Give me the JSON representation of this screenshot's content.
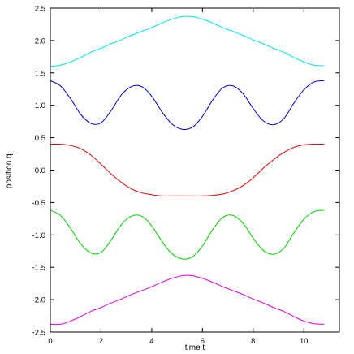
{
  "chart_data": {
    "type": "line",
    "title": "",
    "xlabel": "time t",
    "ylabel": "position q",
    "ylabel_subscript": "i",
    "xlim": [
      0,
      11.4
    ],
    "ylim": [
      -2.5,
      2.5
    ],
    "xticks": [
      0,
      2,
      4,
      6,
      8,
      10
    ],
    "xtick_labels": [
      "0",
      "2",
      "4",
      "6",
      "8",
      "10"
    ],
    "yticks": [
      -2.5,
      -2.0,
      -1.5,
      -1.0,
      -0.5,
      0.0,
      0.5,
      1.0,
      1.5,
      2.0,
      2.5
    ],
    "ytick_labels": [
      "-2.5",
      "-2.0",
      "-1.5",
      "-1.0",
      "-0.5",
      "0.0",
      "0.5",
      "1.0",
      "1.5",
      "2.0",
      "2.5"
    ],
    "grid": false,
    "legend": "none",
    "series": [
      {
        "color": "#00e5e5",
        "x": [
          0,
          0.4,
          0.8,
          1.2,
          1.6,
          2,
          2.4,
          2.8,
          3.2,
          3.6,
          4,
          4.4,
          4.8,
          5.2,
          5.6,
          6,
          6.4,
          6.8,
          7.2,
          7.6,
          8,
          8.4,
          8.8,
          9.2,
          9.6,
          10,
          10.4,
          10.8
        ],
        "y": [
          1.6,
          1.62,
          1.67,
          1.74,
          1.82,
          1.88,
          1.95,
          2.01,
          2.08,
          2.14,
          2.2,
          2.27,
          2.33,
          2.37,
          2.37,
          2.33,
          2.27,
          2.2,
          2.14,
          2.08,
          2.01,
          1.95,
          1.88,
          1.82,
          1.74,
          1.67,
          1.62,
          1.61
        ]
      },
      {
        "color": "#0000d0",
        "x": [
          0,
          0.4,
          0.8,
          1.2,
          1.6,
          2,
          2.4,
          2.8,
          3.2,
          3.6,
          4,
          4.4,
          4.8,
          5.2,
          5.6,
          6,
          6.4,
          6.8,
          7.2,
          7.6,
          8,
          8.4,
          8.8,
          9.2,
          9.6,
          10,
          10.4,
          10.8
        ],
        "y": [
          1.38,
          1.3,
          1.1,
          0.86,
          0.72,
          0.73,
          0.92,
          1.16,
          1.29,
          1.29,
          1.14,
          0.9,
          0.71,
          0.63,
          0.66,
          0.83,
          1.08,
          1.27,
          1.3,
          1.18,
          0.95,
          0.76,
          0.7,
          0.79,
          1.03,
          1.24,
          1.36,
          1.38
        ]
      },
      {
        "color": "#e00000",
        "x": [
          0,
          0.4,
          0.8,
          1.2,
          1.6,
          2,
          2.4,
          2.8,
          3.2,
          3.6,
          4,
          4.4,
          4.8,
          5.2,
          5.6,
          6,
          6.4,
          6.8,
          7.2,
          7.6,
          8,
          8.4,
          8.8,
          9.2,
          9.6,
          10,
          10.4,
          10.8
        ],
        "y": [
          0.4,
          0.4,
          0.38,
          0.33,
          0.23,
          0.09,
          -0.06,
          -0.19,
          -0.29,
          -0.35,
          -0.38,
          -0.4,
          -0.4,
          -0.4,
          -0.4,
          -0.4,
          -0.39,
          -0.37,
          -0.32,
          -0.24,
          -0.12,
          0.03,
          0.16,
          0.27,
          0.35,
          0.39,
          0.4,
          0.4
        ]
      },
      {
        "color": "#00d000",
        "x": [
          0,
          0.4,
          0.8,
          1.2,
          1.6,
          2,
          2.4,
          2.8,
          3.2,
          3.6,
          4,
          4.4,
          4.8,
          5.2,
          5.6,
          6,
          6.4,
          6.8,
          7.2,
          7.6,
          8,
          8.4,
          8.8,
          9.2,
          9.6,
          10,
          10.4,
          10.8
        ],
        "y": [
          -0.62,
          -0.7,
          -0.9,
          -1.14,
          -1.28,
          -1.27,
          -1.08,
          -0.84,
          -0.71,
          -0.71,
          -0.86,
          -1.1,
          -1.29,
          -1.37,
          -1.34,
          -1.17,
          -0.92,
          -0.73,
          -0.7,
          -0.82,
          -1.05,
          -1.24,
          -1.3,
          -1.21,
          -0.97,
          -0.76,
          -0.64,
          -0.62
        ]
      },
      {
        "color": "#e000e0",
        "x": [
          0,
          0.4,
          0.8,
          1.2,
          1.6,
          2,
          2.4,
          2.8,
          3.2,
          3.6,
          4,
          4.4,
          4.8,
          5.2,
          5.6,
          6,
          6.4,
          6.8,
          7.2,
          7.6,
          8,
          8.4,
          8.8,
          9.2,
          9.6,
          10,
          10.4,
          10.8
        ],
        "y": [
          -2.38,
          -2.38,
          -2.33,
          -2.26,
          -2.18,
          -2.12,
          -2.05,
          -1.99,
          -1.92,
          -1.86,
          -1.8,
          -1.73,
          -1.67,
          -1.63,
          -1.63,
          -1.67,
          -1.73,
          -1.8,
          -1.86,
          -1.92,
          -1.99,
          -2.05,
          -2.12,
          -2.18,
          -2.26,
          -2.33,
          -2.37,
          -2.38
        ]
      }
    ]
  }
}
